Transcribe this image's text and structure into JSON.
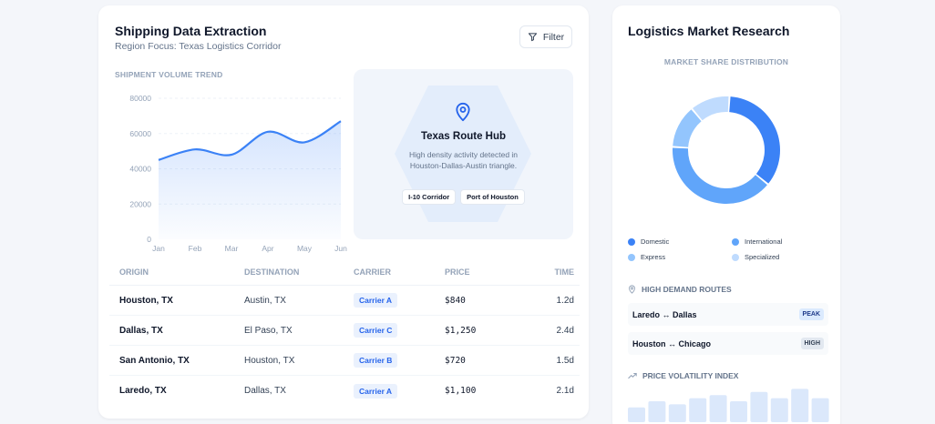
{
  "shipping": {
    "title": "Shipping Data Extraction",
    "subtitle": "Region Focus: Texas Logistics Corridor",
    "filter_label": "Filter",
    "trend_label": "SHIPMENT VOLUME TREND",
    "hub": {
      "title": "Texas Route Hub",
      "description": "High density activity detected in Houston-Dallas-Austin triangle.",
      "tags": [
        "I-10 Corridor",
        "Port of Houston"
      ]
    },
    "table": {
      "headers": [
        "ORIGIN",
        "DESTINATION",
        "CARRIER",
        "PRICE",
        "TIME"
      ],
      "rows": [
        {
          "origin": "Houston, TX",
          "destination": "Austin, TX",
          "carrier": "Carrier A",
          "price": "$840",
          "time": "1.2d"
        },
        {
          "origin": "Dallas, TX",
          "destination": "El Paso, TX",
          "carrier": "Carrier C",
          "price": "$1,250",
          "time": "2.4d"
        },
        {
          "origin": "San Antonio, TX",
          "destination": "Houston, TX",
          "carrier": "Carrier B",
          "price": "$720",
          "time": "1.5d"
        },
        {
          "origin": "Laredo, TX",
          "destination": "Dallas, TX",
          "carrier": "Carrier A",
          "price": "$1,100",
          "time": "2.1d"
        }
      ]
    }
  },
  "research": {
    "title": "Logistics Market Research",
    "market_label": "MARKET SHARE DISTRIBUTION",
    "legend": [
      "Domestic",
      "International",
      "Express",
      "Specialized"
    ],
    "routes_label": "HIGH DEMAND ROUTES",
    "routes": [
      {
        "name": "Laredo ↔ Dallas",
        "badge": "PEAK"
      },
      {
        "name": "Houston ↔ Chicago",
        "badge": "HIGH"
      }
    ],
    "volatility_label": "PRICE VOLATILITY INDEX"
  },
  "colors": {
    "domestic": "#3b82f6",
    "international": "#60a5fa",
    "express": "#93c5fd",
    "specialized": "#bfdbfe",
    "accent": "#2563eb"
  },
  "icons": {
    "filter": "filter-icon",
    "pin": "map-pin-icon",
    "routes": "map-pin-icon",
    "volatility": "trend-up-icon"
  },
  "chart_data": [
    {
      "type": "area",
      "title": "",
      "xlabel": "",
      "ylabel": "",
      "x": [
        "Jan",
        "Feb",
        "Mar",
        "Apr",
        "May",
        "Jun"
      ],
      "values": [
        45000,
        51000,
        48000,
        61000,
        55000,
        67000
      ],
      "yticks": [
        0,
        20000,
        40000,
        60000,
        80000
      ],
      "ylim": [
        0,
        80000
      ],
      "grid": true
    },
    {
      "type": "pie",
      "title": "",
      "donut": true,
      "labels": [
        "Domestic",
        "International",
        "Express",
        "Specialized"
      ],
      "values": [
        35,
        40,
        13,
        12
      ]
    },
    {
      "type": "bar",
      "title": "",
      "values": [
        3,
        5,
        4,
        6,
        7,
        5,
        8,
        6,
        9,
        6
      ]
    }
  ]
}
